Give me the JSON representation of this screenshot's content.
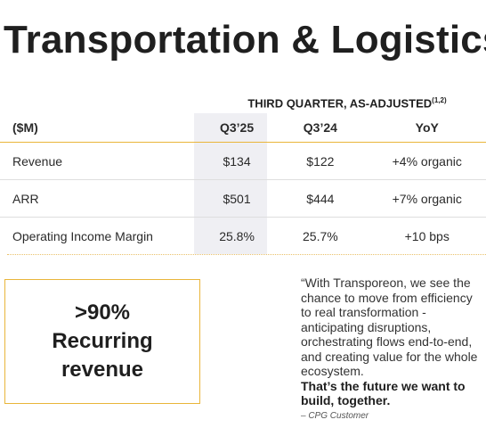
{
  "title": "Transportation & Logistics",
  "section_heading": "THIRD QUARTER, AS-ADJUSTED",
  "section_footnote": "(1,2)",
  "table": {
    "headers": [
      "($M)",
      "Q3’25",
      "Q3’24",
      "YoY"
    ],
    "rows": [
      [
        "Revenue",
        "$134",
        "$122",
        "+4% organic"
      ],
      [
        "ARR",
        "$501",
        "$444",
        "+7% organic"
      ],
      [
        "Operating Income Margin",
        "25.8%",
        "25.7%",
        "+10 bps"
      ]
    ]
  },
  "callout": {
    "line1": ">90%",
    "line2": "Recurring",
    "line3": "revenue"
  },
  "quote": {
    "text": "“With Transporeon, we see the chance to move from efficiency to real transformation - anticipating disruptions, orchestrating flows end-to-end, and creating value for the whole ecosystem.",
    "bold": "That’s the future we want to build, together.",
    "attribution": "– CPG Customer"
  },
  "colors": {
    "accent": "#e9b53a",
    "highlight_column": "#efeff3",
    "text": "#222222"
  }
}
